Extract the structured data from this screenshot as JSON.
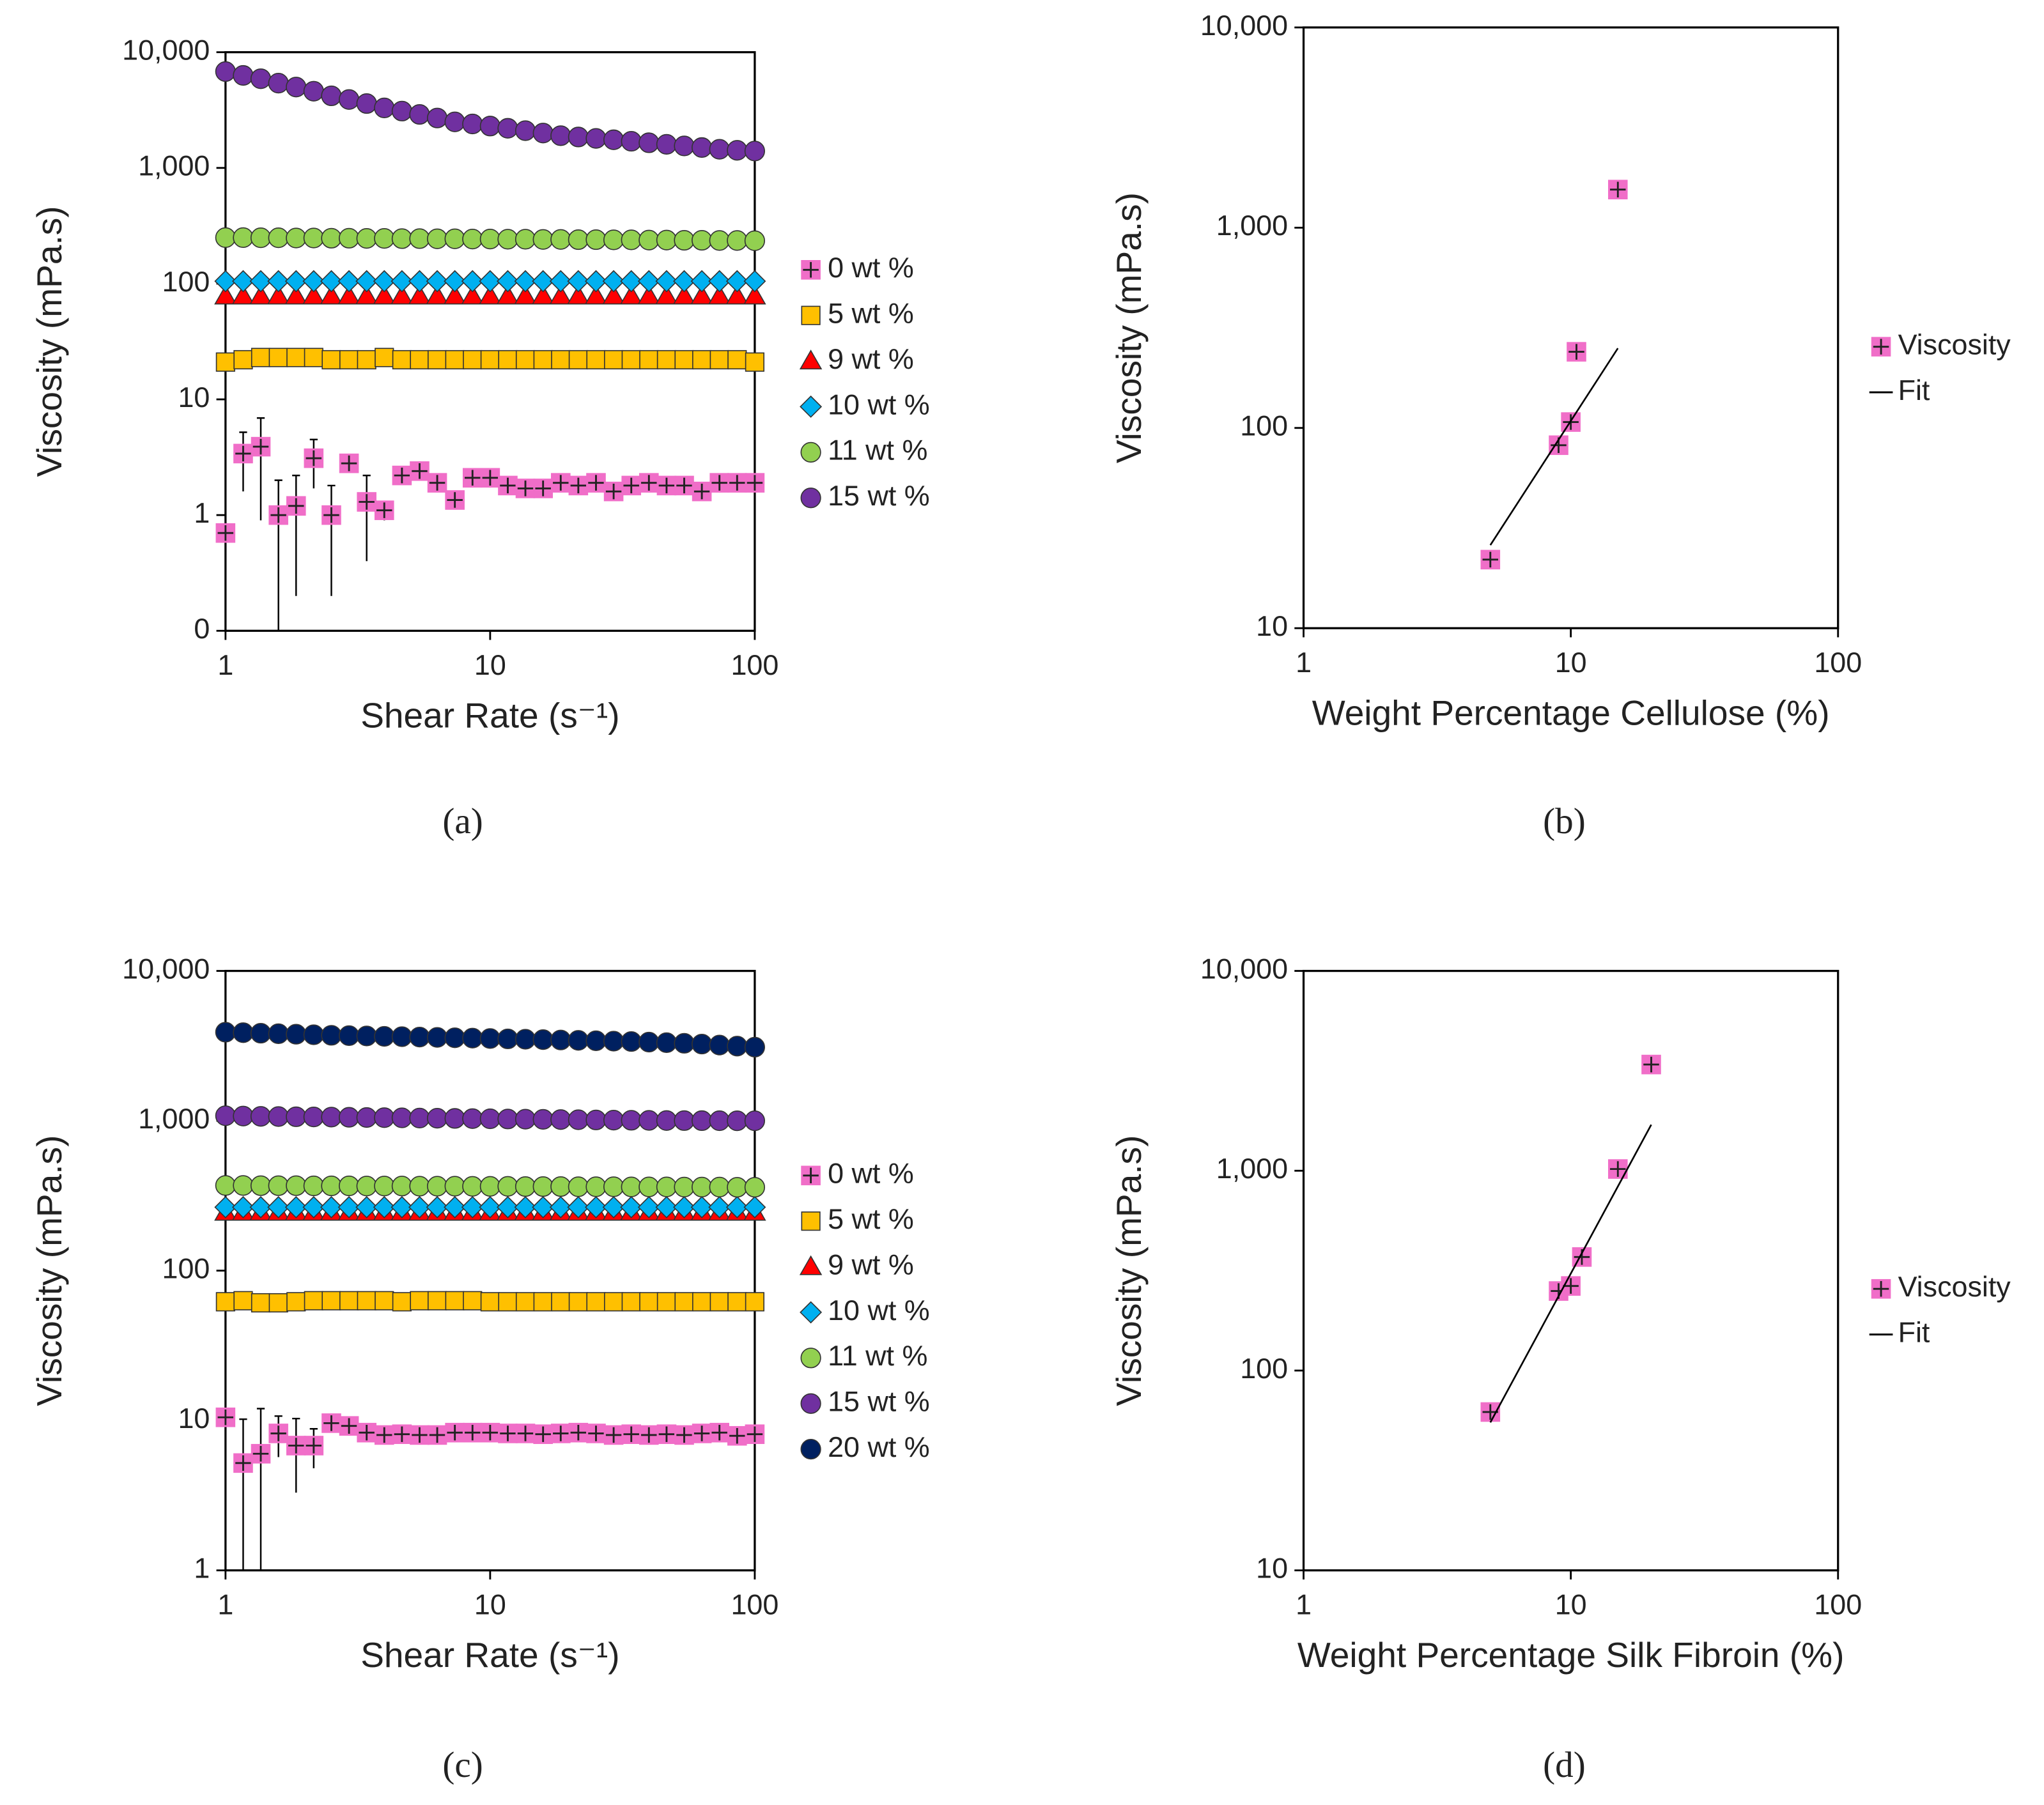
{
  "chart_data": [
    {
      "type": "scatter",
      "caption": "(a)",
      "ylabel": "Viscosity (mPa.s)",
      "xlabel": "Shear Rate (s⁻¹)",
      "xlog": true,
      "ylog": true,
      "xlim": [
        1,
        100
      ],
      "xticks": [
        1,
        10,
        100
      ],
      "ylim": [
        0.1,
        10000
      ],
      "yticks": [
        {
          "value": 0.1,
          "label": "0"
        },
        1,
        10,
        100,
        {
          "value": 1000,
          "label": "1,000"
        },
        {
          "value": 10000,
          "label": "10,000"
        }
      ],
      "x": [
        1,
        1.166,
        1.359,
        1.585,
        1.848,
        2.154,
        2.512,
        2.929,
        3.415,
        3.981,
        4.642,
        5.412,
        6.31,
        7.356,
        8.577,
        10,
        11.66,
        13.59,
        15.85,
        18.48,
        21.54,
        25.12,
        29.29,
        34.15,
        39.81,
        46.42,
        54.12,
        63.1,
        73.56,
        85.77,
        100
      ],
      "series": [
        {
          "name": "0 wt %",
          "color": "#f06ec8",
          "marker": "square-plus",
          "values": [
            0.7,
            3.4,
            3.9,
            1.0,
            1.2,
            3.1,
            1.0,
            2.8,
            1.3,
            1.1,
            2.2,
            2.4,
            1.9,
            1.35,
            2.1,
            2.1,
            1.8,
            1.7,
            1.7,
            1.9,
            1.8,
            1.9,
            1.6,
            1.8,
            1.9,
            1.8,
            1.8,
            1.6,
            1.9,
            1.9,
            1.9
          ],
          "errors": [
            0.1,
            1.8,
            3,
            1,
            1,
            1.4,
            0.8,
            0.3,
            0.9,
            0.2,
            0.2,
            0.2,
            0.2,
            0.2,
            0.2,
            0.2,
            0.1,
            0.1,
            0.1,
            0.1,
            0.1,
            0.1,
            0.1,
            0.1,
            0.1,
            0.1,
            0.1,
            0.1,
            0.1,
            0.1,
            0.1
          ]
        },
        {
          "name": "5 wt %",
          "color": "#ffc000",
          "marker": "square",
          "values": [
            21,
            22,
            23,
            23,
            23,
            23,
            22,
            22,
            22,
            23,
            22,
            22,
            22,
            22,
            22,
            22,
            22,
            22,
            22,
            22,
            22,
            22,
            22,
            22,
            22,
            22,
            22,
            22,
            22,
            22,
            21
          ]
        },
        {
          "name": "9 wt %",
          "color": "#ff0000",
          "marker": "triangle",
          "values": [
            78,
            78,
            78,
            78,
            78,
            78,
            78,
            78,
            78,
            78,
            78,
            78,
            78,
            78,
            78,
            78,
            78,
            78,
            78,
            78,
            78,
            78,
            78,
            78,
            78,
            78,
            78,
            78,
            78,
            78,
            78
          ]
        },
        {
          "name": "10 wt %",
          "color": "#00b0f0",
          "marker": "diamond",
          "values": [
            105,
            105,
            105,
            105,
            105,
            105,
            105,
            105,
            105,
            105,
            105,
            105,
            105,
            105,
            105,
            105,
            105,
            105,
            105,
            105,
            105,
            105,
            105,
            105,
            105,
            105,
            105,
            105,
            105,
            105,
            105
          ]
        },
        {
          "name": "11 wt %",
          "color": "#92d050",
          "marker": "circle",
          "values": [
            250,
            250,
            249,
            249,
            248,
            248,
            247,
            247,
            246,
            246,
            245,
            245,
            244,
            244,
            243,
            243,
            242,
            242,
            241,
            241,
            240,
            240,
            239,
            239,
            238,
            238,
            237,
            237,
            236,
            236,
            235
          ]
        },
        {
          "name": "15 wt %",
          "color": "#7030a0",
          "marker": "circle",
          "values": [
            6800,
            6300,
            5900,
            5400,
            5000,
            4600,
            4200,
            3900,
            3600,
            3300,
            3100,
            2900,
            2700,
            2500,
            2400,
            2300,
            2200,
            2100,
            2000,
            1900,
            1850,
            1800,
            1750,
            1700,
            1650,
            1600,
            1550,
            1500,
            1450,
            1420,
            1400
          ]
        }
      ]
    },
    {
      "type": "scatter",
      "caption": "(b)",
      "ylabel": "Viscosity (mPa.s)",
      "xlabel": "Weight Percentage Cellulose (%)",
      "xlog": true,
      "ylog": true,
      "xlim": [
        1,
        100
      ],
      "xticks": [
        1,
        10,
        100
      ],
      "ylim": [
        10,
        10000
      ],
      "yticks": [
        10,
        100,
        {
          "value": 1000,
          "label": "1,000"
        },
        {
          "value": 10000,
          "label": "10,000"
        }
      ],
      "series": [
        {
          "name": "Viscosity",
          "color": "#f06ec8",
          "marker": "square-plus",
          "x": [
            5,
            9,
            10,
            10.5,
            15
          ],
          "values": [
            22,
            82,
            107,
            240,
            1550
          ]
        },
        {
          "name": "Fit",
          "color": "#000000",
          "x": [
            5,
            15
          ],
          "values": [
            26,
            250
          ]
        }
      ]
    },
    {
      "type": "scatter",
      "caption": "(c)",
      "ylabel": "Viscosity (mPa.s)",
      "xlabel": "Shear Rate (s⁻¹)",
      "xlog": true,
      "ylog": true,
      "xlim": [
        1,
        100
      ],
      "xticks": [
        1,
        10,
        100
      ],
      "ylim": [
        1,
        10000
      ],
      "yticks": [
        1,
        10,
        100,
        {
          "value": 1000,
          "label": "1,000"
        },
        {
          "value": 10000,
          "label": "10,000"
        }
      ],
      "x": [
        1,
        1.166,
        1.359,
        1.585,
        1.848,
        2.154,
        2.512,
        2.929,
        3.415,
        3.981,
        4.642,
        5.412,
        6.31,
        7.356,
        8.577,
        10,
        11.66,
        13.59,
        15.85,
        18.48,
        21.54,
        25.12,
        29.29,
        34.15,
        39.81,
        46.42,
        54.12,
        63.1,
        73.56,
        85.77,
        100
      ],
      "series": [
        {
          "name": "0 wt %",
          "color": "#f06ec8",
          "marker": "square-plus",
          "values": [
            10.5,
            5.2,
            6,
            8.2,
            6.8,
            6.8,
            9.6,
            9.2,
            8.3,
            8,
            8.1,
            8,
            8,
            8.3,
            8.3,
            8.3,
            8.2,
            8.2,
            8.1,
            8.2,
            8.3,
            8.2,
            8,
            8.1,
            8,
            8.1,
            8,
            8.2,
            8.3,
            7.9,
            8.1
          ],
          "errors": [
            0.5,
            5,
            6,
            2.5,
            3.5,
            2,
            1.2,
            0.8,
            0.5,
            0.3,
            0.3,
            0.3,
            0.3,
            0.3,
            0.3,
            0.3,
            0.3,
            0.3,
            0.3,
            0.3,
            0.3,
            0.3,
            0.3,
            0.3,
            0.3,
            0.3,
            0.3,
            0.3,
            0.3,
            0.3,
            0.3
          ]
        },
        {
          "name": "5 wt %",
          "color": "#ffc000",
          "marker": "square",
          "values": [
            62,
            63,
            61,
            61,
            62,
            63,
            63,
            63,
            63,
            63,
            62,
            63,
            63,
            63,
            63,
            62,
            62,
            62,
            62,
            62,
            62,
            62,
            62,
            62,
            62,
            62,
            62,
            62,
            62,
            62,
            62
          ]
        },
        {
          "name": "9 wt %",
          "color": "#ff0000",
          "marker": "triangle",
          "values": [
            245,
            245,
            245,
            245,
            245,
            245,
            245,
            245,
            245,
            245,
            245,
            245,
            245,
            245,
            245,
            245,
            245,
            245,
            245,
            245,
            245,
            245,
            245,
            245,
            245,
            245,
            245,
            245,
            245,
            245,
            245
          ]
        },
        {
          "name": "10 wt %",
          "color": "#00b0f0",
          "marker": "diamond",
          "values": [
            265,
            265,
            265,
            265,
            265,
            265,
            265,
            265,
            265,
            265,
            265,
            265,
            265,
            265,
            265,
            265,
            265,
            265,
            265,
            265,
            265,
            265,
            265,
            265,
            265,
            265,
            265,
            265,
            265,
            265,
            265
          ]
        },
        {
          "name": "11 wt %",
          "color": "#92d050",
          "marker": "circle",
          "values": [
            370,
            370,
            369,
            369,
            369,
            368,
            368,
            368,
            367,
            367,
            367,
            366,
            366,
            366,
            365,
            365,
            365,
            364,
            364,
            364,
            363,
            363,
            363,
            362,
            362,
            362,
            361,
            361,
            361,
            360,
            360
          ]
        },
        {
          "name": "15 wt %",
          "color": "#7030a0",
          "marker": "circle",
          "values": [
            1080,
            1075,
            1070,
            1067,
            1064,
            1061,
            1058,
            1055,
            1052,
            1049,
            1046,
            1043,
            1040,
            1037,
            1034,
            1031,
            1028,
            1025,
            1022,
            1019,
            1016,
            1013,
            1010,
            1008,
            1006,
            1004,
            1003,
            1002,
            1001,
            1000,
            1000
          ]
        },
        {
          "name": "20 wt %",
          "color": "#002060",
          "marker": "circle",
          "values": [
            3900,
            3870,
            3840,
            3810,
            3780,
            3750,
            3720,
            3700,
            3680,
            3660,
            3640,
            3620,
            3600,
            3580,
            3560,
            3540,
            3520,
            3500,
            3480,
            3460,
            3440,
            3420,
            3400,
            3380,
            3350,
            3320,
            3290,
            3250,
            3200,
            3150,
            3100
          ]
        }
      ]
    },
    {
      "type": "scatter",
      "caption": "(d)",
      "ylabel": "Viscosity (mPa.s)",
      "xlabel": "Weight Percentage Silk Fibroin (%)",
      "xlog": true,
      "ylog": true,
      "xlim": [
        1,
        100
      ],
      "xticks": [
        1,
        10,
        100
      ],
      "ylim": [
        10,
        10000
      ],
      "yticks": [
        10,
        100,
        {
          "value": 1000,
          "label": "1,000"
        },
        {
          "value": 10000,
          "label": "10,000"
        }
      ],
      "series": [
        {
          "name": "Viscosity",
          "color": "#f06ec8",
          "marker": "square-plus",
          "x": [
            5,
            9,
            10,
            11,
            15,
            20
          ],
          "values": [
            62,
            250,
            265,
            370,
            1020,
            3400
          ]
        },
        {
          "name": "Fit",
          "color": "#000000",
          "x": [
            5,
            20
          ],
          "values": [
            55,
            1700
          ]
        }
      ]
    }
  ]
}
